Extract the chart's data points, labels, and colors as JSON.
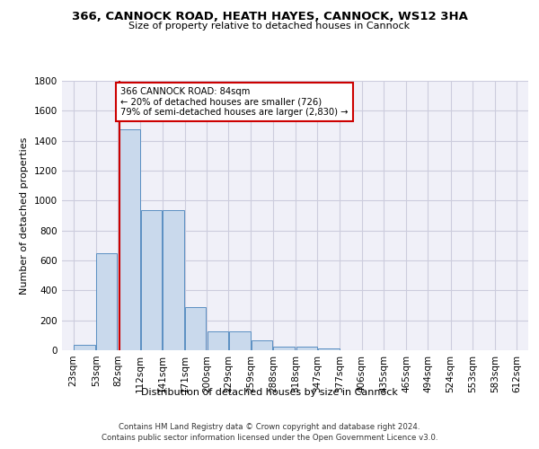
{
  "title": "366, CANNOCK ROAD, HEATH HAYES, CANNOCK, WS12 3HA",
  "subtitle": "Size of property relative to detached houses in Cannock",
  "xlabel": "Distribution of detached houses by size in Cannock",
  "ylabel": "Number of detached properties",
  "bar_color": "#c9d9ec",
  "bar_edge_color": "#5a8fc2",
  "grid_color": "#ccccdd",
  "background_color": "#f0f0f8",
  "vline_x": 84,
  "vline_color": "#cc0000",
  "annotation_text": "366 CANNOCK ROAD: 84sqm\n← 20% of detached houses are smaller (726)\n79% of semi-detached houses are larger (2,830) →",
  "annotation_box_color": "#cc0000",
  "footer_line1": "Contains HM Land Registry data © Crown copyright and database right 2024.",
  "footer_line2": "Contains public sector information licensed under the Open Government Licence v3.0.",
  "bins": [
    23,
    53,
    82,
    112,
    141,
    171,
    200,
    229,
    259,
    288,
    318,
    347,
    377,
    406,
    435,
    465,
    494,
    524,
    553,
    583,
    612
  ],
  "counts": [
    38,
    651,
    1474,
    936,
    936,
    291,
    125,
    125,
    65,
    24,
    24,
    15,
    0,
    0,
    0,
    0,
    0,
    0,
    0,
    0
  ],
  "ylim": [
    0,
    1800
  ],
  "yticks": [
    0,
    200,
    400,
    600,
    800,
    1000,
    1200,
    1400,
    1600,
    1800
  ]
}
